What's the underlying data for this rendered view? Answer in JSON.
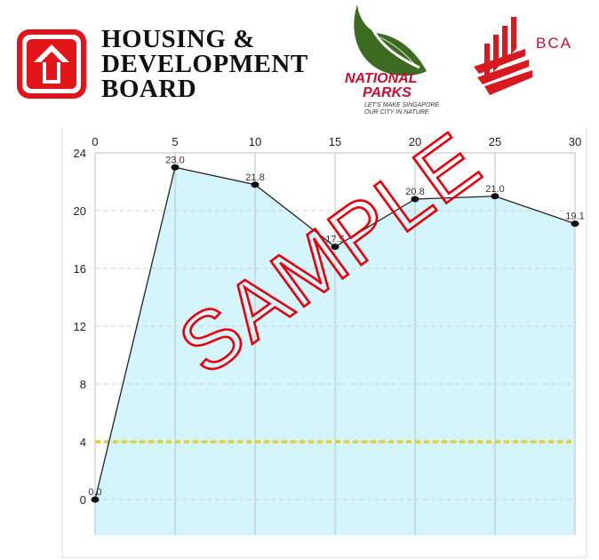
{
  "logos": {
    "hdb": {
      "lines": [
        "HOUSING &",
        "DEVELOPMENT",
        "BOARD"
      ],
      "color": "#e3151a"
    },
    "nparks": {
      "title_lines": [
        "NATIONAL",
        "PARKS"
      ],
      "tagline_lines": [
        "LET'S MAKE SINGAPORE",
        "OUR CITY IN NATURE"
      ],
      "leaf_color": "#3d6b21",
      "text_color": "#c8102e"
    },
    "bca": {
      "text": "BCA",
      "color": "#d71920"
    }
  },
  "watermark": {
    "text": "SAMPLE",
    "color": "#e8000b"
  },
  "chart_data": {
    "type": "area",
    "x": [
      0,
      5,
      10,
      15,
      20,
      25,
      30
    ],
    "y": [
      0.0,
      23.0,
      21.8,
      17.5,
      20.8,
      21.0,
      19.1
    ],
    "point_labels": [
      "0.0",
      "23.0",
      "21.8",
      "17.5",
      "20.8",
      "21.0",
      "19.1"
    ],
    "x_ticks": [
      "0",
      "5",
      "10",
      "15",
      "20",
      "25",
      "30"
    ],
    "y_ticks": [
      "0",
      "4",
      "8",
      "12",
      "16",
      "20",
      "24"
    ],
    "xlim": [
      0,
      30
    ],
    "ylim": [
      0,
      24
    ],
    "x_axis_position": "top",
    "threshold": {
      "value": 4,
      "color": "#e0d030",
      "style": "dotted"
    },
    "fill_color": "#d4f5fc",
    "line_color": "#222222",
    "grid": true,
    "title": "",
    "xlabel": "",
    "ylabel": ""
  }
}
